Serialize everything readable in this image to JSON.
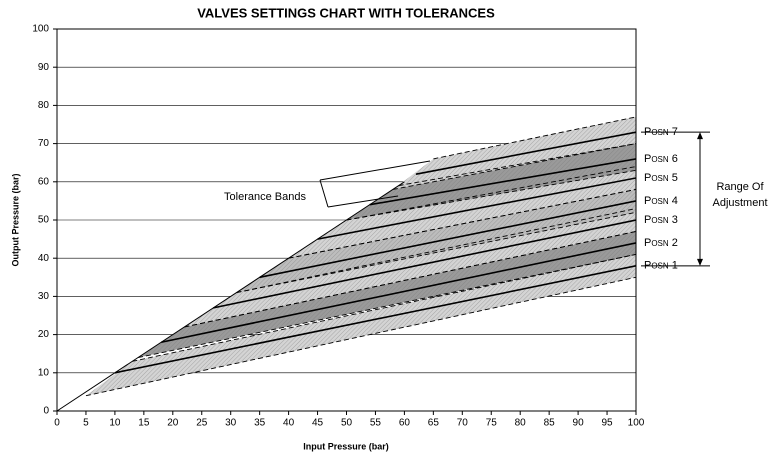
{
  "chart_data": {
    "type": "line",
    "title": "VALVES SETTINGS CHART WITH TOLERANCES",
    "x_label": "Input Pressure (bar)",
    "y_label": "Output Pressure (bar)",
    "xlim": [
      0,
      100
    ],
    "xticks": [
      0,
      5,
      10,
      15,
      20,
      25,
      30,
      35,
      40,
      45,
      50,
      55,
      60,
      65,
      70,
      75,
      80,
      85,
      90,
      95,
      100
    ],
    "ylim": [
      0,
      100
    ],
    "yticks": [
      0,
      10,
      20,
      30,
      40,
      50,
      60,
      70,
      80,
      90,
      100
    ],
    "grid": true,
    "limit_line": {
      "x": [
        0,
        60
      ],
      "values": [
        0,
        60
      ]
    },
    "series": [
      {
        "name": "Posn 1",
        "color": "#d4d4d4",
        "x": [
          10,
          100
        ],
        "values": [
          10,
          38
        ],
        "lower_x": [
          5,
          100
        ],
        "lower": [
          4,
          35
        ],
        "upper_x": [
          13,
          100
        ],
        "upper": [
          13,
          41
        ]
      },
      {
        "name": "Posn 2",
        "color": "#9a9a9a",
        "x": [
          18,
          100
        ],
        "values": [
          18,
          44
        ],
        "lower_x": [
          14,
          100
        ],
        "lower": [
          14,
          41
        ],
        "upper_x": [
          22,
          100
        ],
        "upper": [
          22,
          47
        ]
      },
      {
        "name": "Posn 3",
        "color": "#d4d4d4",
        "x": [
          27,
          100
        ],
        "values": [
          27,
          50
        ],
        "lower_x": [
          22,
          100
        ],
        "lower": [
          22,
          47
        ],
        "upper_x": [
          31,
          100
        ],
        "upper": [
          31,
          53
        ]
      },
      {
        "name": "Posn 4",
        "color": "#bdbdbd",
        "x": [
          35,
          100
        ],
        "values": [
          35,
          55
        ],
        "lower_x": [
          31,
          100
        ],
        "lower": [
          31,
          52
        ],
        "upper_x": [
          40,
          100
        ],
        "upper": [
          40,
          58
        ]
      },
      {
        "name": "Posn 5",
        "color": "#d4d4d4",
        "x": [
          45,
          100
        ],
        "values": [
          45,
          61
        ],
        "lower_x": [
          40,
          100
        ],
        "lower": [
          40,
          58
        ],
        "upper_x": [
          50,
          100
        ],
        "upper": [
          50,
          64
        ]
      },
      {
        "name": "Posn 6",
        "color": "#9a9a9a",
        "x": [
          54,
          100
        ],
        "values": [
          54,
          66
        ],
        "lower_x": [
          50,
          100
        ],
        "lower": [
          50,
          63
        ],
        "upper_x": [
          59,
          100
        ],
        "upper": [
          59,
          70
        ]
      },
      {
        "name": "Posn 7",
        "color": "#d4d4d4",
        "x": [
          62,
          100
        ],
        "values": [
          62,
          73
        ],
        "lower_x": [
          58,
          100
        ],
        "lower": [
          58,
          70
        ],
        "upper_x": [
          65,
          100
        ],
        "upper": [
          66,
          77
        ]
      }
    ],
    "annotations": [
      "Tolerance Bands",
      "Range Of",
      "Adjustment"
    ]
  }
}
